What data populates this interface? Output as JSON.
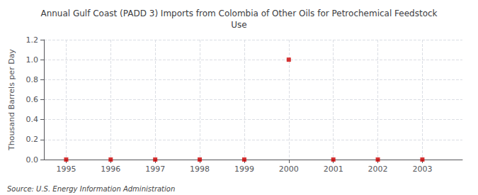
{
  "chart_data": {
    "type": "scatter",
    "title": "Annual Gulf Coast (PADD 3) Imports from Colombia of Other Oils for Petrochemical Feedstock\nUse",
    "ylabel": "Thousand Barrels per Day",
    "source": "Source: U.S. Energy Information Administration",
    "x": [
      1995,
      1996,
      1997,
      1998,
      1999,
      2000,
      2001,
      2002,
      2003
    ],
    "values": [
      0,
      0,
      0,
      0,
      0,
      1.0,
      0,
      0,
      0
    ],
    "color": "#cc0000",
    "marker": "square",
    "xlim": [
      1994.5,
      2003.9
    ],
    "xticks": [
      1995,
      1996,
      1997,
      1998,
      1999,
      2000,
      2001,
      2002,
      2003
    ],
    "ylim": [
      0,
      1.2
    ],
    "yticks": [
      {
        "value": 0,
        "label": "0.0"
      },
      0.2,
      0.4,
      0.6,
      0.8,
      {
        "value": 1,
        "label": "1.0"
      },
      1.2
    ],
    "grid": true
  }
}
